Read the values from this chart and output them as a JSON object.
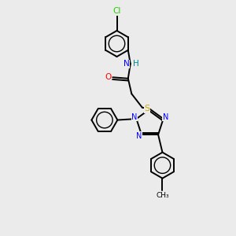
{
  "background_color": "#ebebeb",
  "bond_color": "#000000",
  "atom_colors": {
    "N": "#0000ff",
    "O": "#ff0000",
    "S": "#ccaa00",
    "Cl": "#22cc00",
    "H": "#008888",
    "C": "#000000"
  },
  "figsize": [
    3.0,
    3.0
  ],
  "dpi": 100,
  "xlim": [
    0,
    10
  ],
  "ylim": [
    0,
    10
  ]
}
